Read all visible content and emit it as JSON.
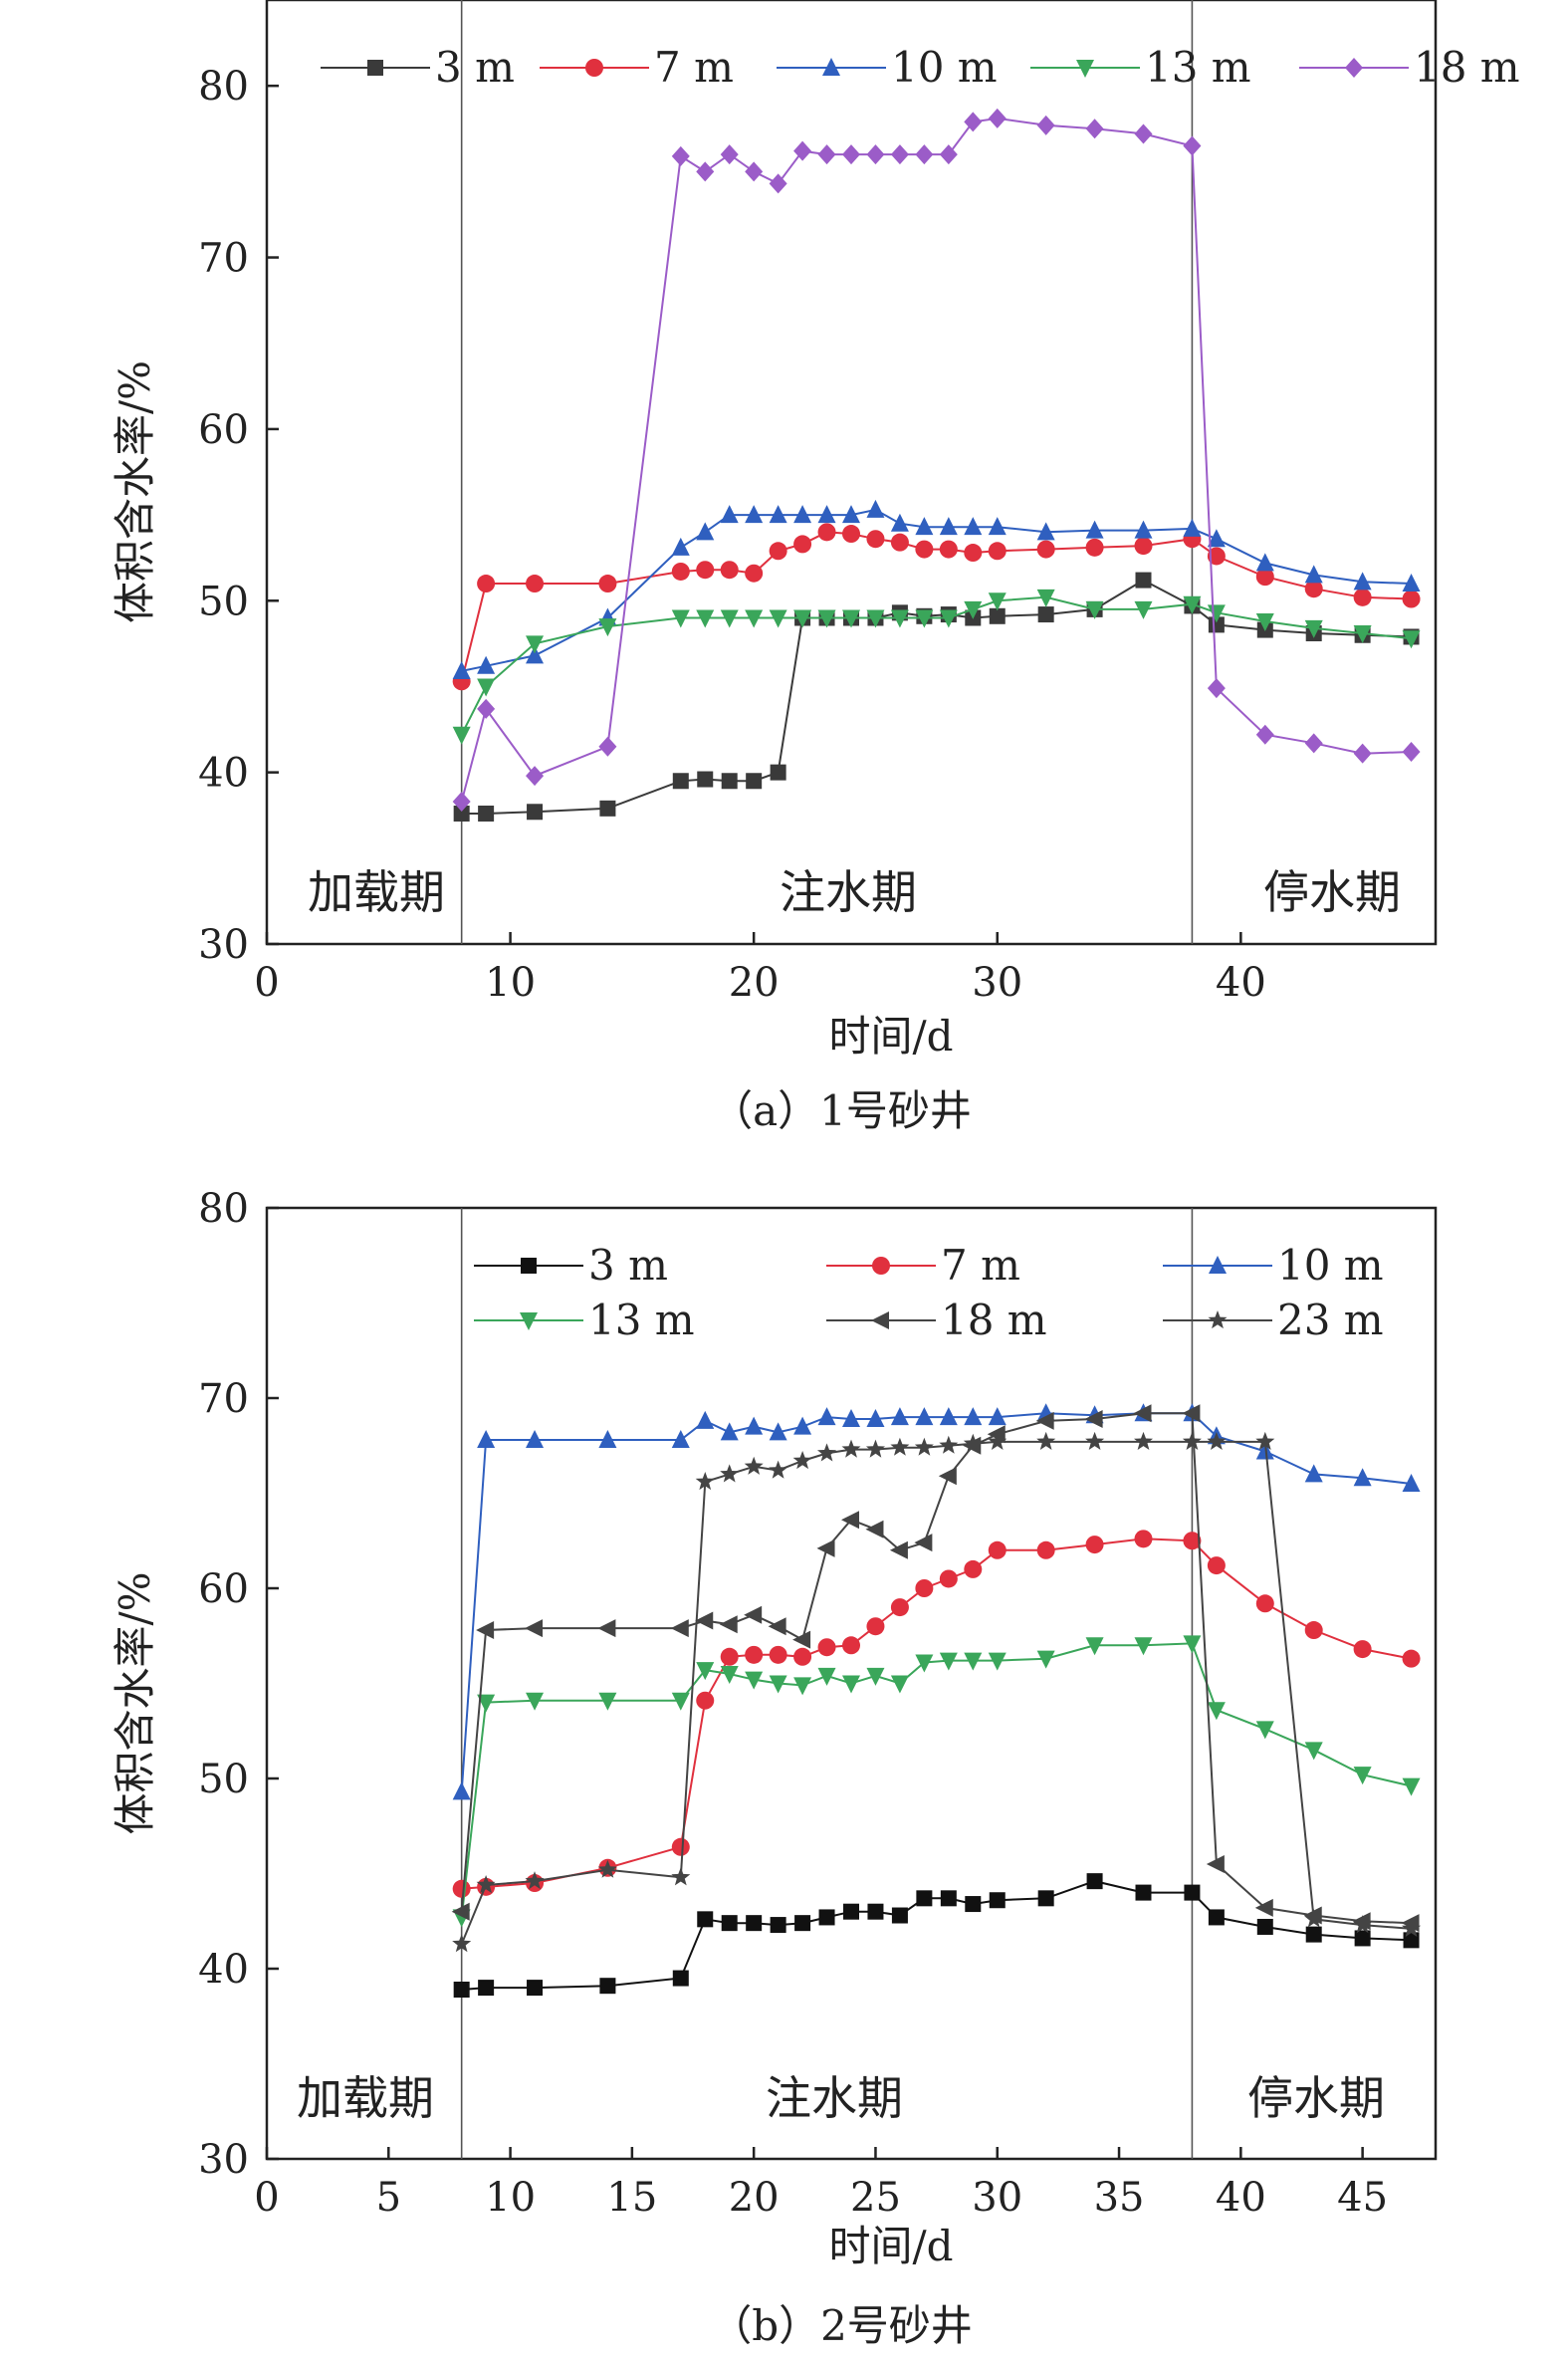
{
  "chart_data": [
    {
      "type": "line",
      "caption": "（a）1号砂井",
      "xlabel": "时间/d",
      "ylabel": "体积含水率/%",
      "xlim": [
        0,
        48
      ],
      "ylim": [
        30,
        85
      ],
      "xticks": [
        0,
        10,
        20,
        30,
        40
      ],
      "yticks": [
        30,
        40,
        50,
        60,
        70,
        80
      ],
      "legend_position": "top",
      "grid": false,
      "phase_lines": [
        8,
        38
      ],
      "phases": [
        "加载期",
        "注水期",
        "停水期"
      ],
      "series": [
        {
          "name": "3 m",
          "color": "#3a3a3a",
          "marker": "square",
          "x": [
            8,
            9,
            11,
            14,
            17,
            18,
            19,
            20,
            21,
            22,
            23,
            24,
            25,
            26,
            27,
            28,
            29,
            30,
            32,
            34,
            36,
            38,
            39,
            41,
            43,
            45,
            47
          ],
          "y": [
            37.6,
            37.6,
            37.7,
            37.9,
            39.5,
            39.6,
            39.5,
            39.5,
            40.0,
            49.0,
            49.0,
            49.0,
            49.0,
            49.3,
            49.1,
            49.2,
            49.0,
            49.1,
            49.2,
            49.5,
            51.2,
            49.7,
            48.6,
            48.3,
            48.1,
            48.0,
            47.9
          ]
        },
        {
          "name": "7 m",
          "color": "#e0303e",
          "marker": "circle",
          "x": [
            8,
            9,
            11,
            14,
            17,
            18,
            19,
            20,
            21,
            22,
            23,
            24,
            25,
            26,
            27,
            28,
            29,
            30,
            32,
            34,
            36,
            38,
            39,
            41,
            43,
            45,
            47
          ],
          "y": [
            45.3,
            51.0,
            51.0,
            51.0,
            51.7,
            51.8,
            51.8,
            51.6,
            52.9,
            53.3,
            54.0,
            53.9,
            53.6,
            53.4,
            53.0,
            53.0,
            52.8,
            52.9,
            53.0,
            53.1,
            53.2,
            53.6,
            52.6,
            51.4,
            50.7,
            50.2,
            50.1
          ]
        },
        {
          "name": "10 m",
          "color": "#2f5fbf",
          "marker": "triangle-up",
          "x": [
            8,
            9,
            11,
            14,
            17,
            18,
            19,
            20,
            21,
            22,
            23,
            24,
            25,
            26,
            27,
            28,
            29,
            30,
            32,
            34,
            36,
            38,
            39,
            41,
            43,
            45,
            47
          ],
          "y": [
            45.9,
            46.2,
            46.8,
            49.0,
            53.1,
            54.0,
            55.0,
            55.0,
            55.0,
            55.0,
            55.0,
            55.0,
            55.3,
            54.5,
            54.3,
            54.3,
            54.3,
            54.3,
            54.0,
            54.1,
            54.1,
            54.2,
            53.6,
            52.2,
            51.5,
            51.1,
            51.0
          ]
        },
        {
          "name": "13 m",
          "color": "#3aa65a",
          "marker": "triangle-down",
          "x": [
            8,
            9,
            11,
            14,
            17,
            18,
            19,
            20,
            21,
            22,
            23,
            24,
            25,
            26,
            27,
            28,
            29,
            30,
            32,
            34,
            36,
            38,
            39,
            41,
            43,
            45,
            47
          ],
          "y": [
            42.2,
            45.0,
            47.5,
            48.5,
            49.0,
            49.0,
            49.0,
            49.0,
            49.0,
            49.0,
            49.0,
            49.0,
            49.0,
            49.0,
            49.0,
            49.0,
            49.5,
            50.0,
            50.2,
            49.5,
            49.5,
            49.8,
            49.3,
            48.8,
            48.4,
            48.1,
            47.8
          ]
        },
        {
          "name": "18 m",
          "color": "#9b5cc8",
          "marker": "diamond",
          "x": [
            8,
            9,
            11,
            14,
            17,
            18,
            19,
            20,
            21,
            22,
            23,
            24,
            25,
            26,
            27,
            28,
            29,
            30,
            32,
            34,
            36,
            38,
            39,
            41,
            43,
            45,
            47
          ],
          "y": [
            38.3,
            43.7,
            39.8,
            41.5,
            75.9,
            75.0,
            76.0,
            75.0,
            74.3,
            76.2,
            76.0,
            76.0,
            76.0,
            76.0,
            76.0,
            76.0,
            77.9,
            78.1,
            77.7,
            77.5,
            77.2,
            76.5,
            44.9,
            42.2,
            41.7,
            41.1,
            41.2
          ]
        }
      ]
    },
    {
      "type": "line",
      "caption": "（b）2号砂井",
      "xlabel": "时间/d",
      "ylabel": "体积含水率/%",
      "xlim": [
        0,
        48
      ],
      "ylim": [
        30,
        80
      ],
      "xticks": [
        0,
        5,
        10,
        15,
        20,
        25,
        30,
        35,
        40,
        45
      ],
      "yticks": [
        30,
        40,
        50,
        60,
        70,
        80
      ],
      "legend_position": "top",
      "grid": false,
      "phase_lines": [
        8,
        38
      ],
      "phases": [
        "加载期",
        "注水期",
        "停水期"
      ],
      "series": [
        {
          "name": "3 m",
          "color": "#111111",
          "marker": "square",
          "x": [
            8,
            9,
            11,
            14,
            17,
            18,
            19,
            20,
            21,
            22,
            23,
            24,
            25,
            26,
            27,
            28,
            29,
            30,
            32,
            34,
            36,
            38,
            39,
            41,
            43,
            45,
            47
          ],
          "y": [
            38.9,
            39.0,
            39.0,
            39.1,
            39.5,
            42.6,
            42.4,
            42.4,
            42.3,
            42.4,
            42.7,
            43.0,
            43.0,
            42.8,
            43.7,
            43.7,
            43.4,
            43.6,
            43.7,
            44.6,
            44.0,
            44.0,
            42.7,
            42.2,
            41.8,
            41.6,
            41.5
          ]
        },
        {
          "name": "7 m",
          "color": "#e0303e",
          "marker": "circle",
          "x": [
            8,
            9,
            11,
            14,
            17,
            18,
            19,
            20,
            21,
            22,
            23,
            24,
            25,
            26,
            27,
            28,
            29,
            30,
            32,
            34,
            36,
            38,
            39,
            41,
            43,
            45,
            47
          ],
          "y": [
            44.2,
            44.3,
            44.5,
            45.3,
            46.4,
            54.1,
            56.4,
            56.5,
            56.5,
            56.4,
            56.9,
            57.0,
            58.0,
            59.0,
            60.0,
            60.5,
            61.0,
            62.0,
            62.0,
            62.3,
            62.6,
            62.5,
            61.2,
            59.2,
            57.8,
            56.8,
            56.3
          ]
        },
        {
          "name": "10 m",
          "color": "#2f5fbf",
          "marker": "triangle-up",
          "x": [
            8,
            9,
            11,
            14,
            17,
            18,
            19,
            20,
            21,
            22,
            23,
            24,
            25,
            26,
            27,
            28,
            29,
            30,
            32,
            34,
            36,
            38,
            39,
            41,
            43,
            45,
            47
          ],
          "y": [
            49.3,
            67.8,
            67.8,
            67.8,
            67.8,
            68.8,
            68.2,
            68.5,
            68.2,
            68.5,
            69.0,
            68.9,
            68.9,
            69.0,
            69.0,
            69.0,
            69.0,
            69.0,
            69.2,
            69.1,
            69.2,
            69.2,
            68.0,
            67.2,
            66.0,
            65.8,
            65.5
          ]
        },
        {
          "name": "13 m",
          "color": "#3aa65a",
          "marker": "triangle-down",
          "x": [
            8,
            9,
            11,
            14,
            17,
            18,
            19,
            20,
            21,
            22,
            23,
            24,
            25,
            26,
            27,
            28,
            29,
            30,
            32,
            34,
            36,
            38,
            39,
            41,
            43,
            45,
            47
          ],
          "y": [
            42.7,
            54.0,
            54.1,
            54.1,
            54.1,
            55.7,
            55.5,
            55.2,
            55.0,
            54.9,
            55.4,
            55.0,
            55.4,
            55.0,
            56.1,
            56.2,
            56.2,
            56.2,
            56.3,
            57.0,
            57.0,
            57.1,
            53.6,
            52.6,
            51.5,
            50.2,
            49.6
          ]
        },
        {
          "name": "18 m",
          "color": "#444444",
          "marker": "triangle-left",
          "x": [
            8,
            9,
            11,
            14,
            17,
            18,
            19,
            20,
            21,
            22,
            23,
            24,
            25,
            26,
            27,
            28,
            29,
            30,
            32,
            34,
            36,
            38,
            39,
            41,
            43,
            45,
            47
          ],
          "y": [
            43.0,
            57.8,
            57.9,
            57.9,
            57.9,
            58.3,
            58.1,
            58.6,
            58.0,
            57.3,
            62.1,
            63.6,
            63.1,
            62.0,
            62.4,
            65.9,
            67.5,
            68.1,
            68.8,
            68.9,
            69.2,
            69.2,
            45.5,
            43.2,
            42.8,
            42.5,
            42.4
          ]
        },
        {
          "name": "23 m",
          "color": "#444444",
          "marker": "star",
          "x": [
            8,
            9,
            11,
            14,
            17,
            18,
            19,
            20,
            21,
            22,
            23,
            24,
            25,
            26,
            27,
            28,
            29,
            30,
            32,
            34,
            36,
            38,
            39,
            41,
            43,
            45,
            47
          ],
          "y": [
            41.3,
            44.4,
            44.6,
            45.2,
            44.8,
            65.6,
            66.0,
            66.4,
            66.2,
            66.7,
            67.1,
            67.3,
            67.3,
            67.4,
            67.4,
            67.5,
            67.6,
            67.7,
            67.7,
            67.7,
            67.7,
            67.7,
            67.7,
            67.7,
            42.6,
            42.3,
            42.1
          ]
        }
      ]
    }
  ]
}
